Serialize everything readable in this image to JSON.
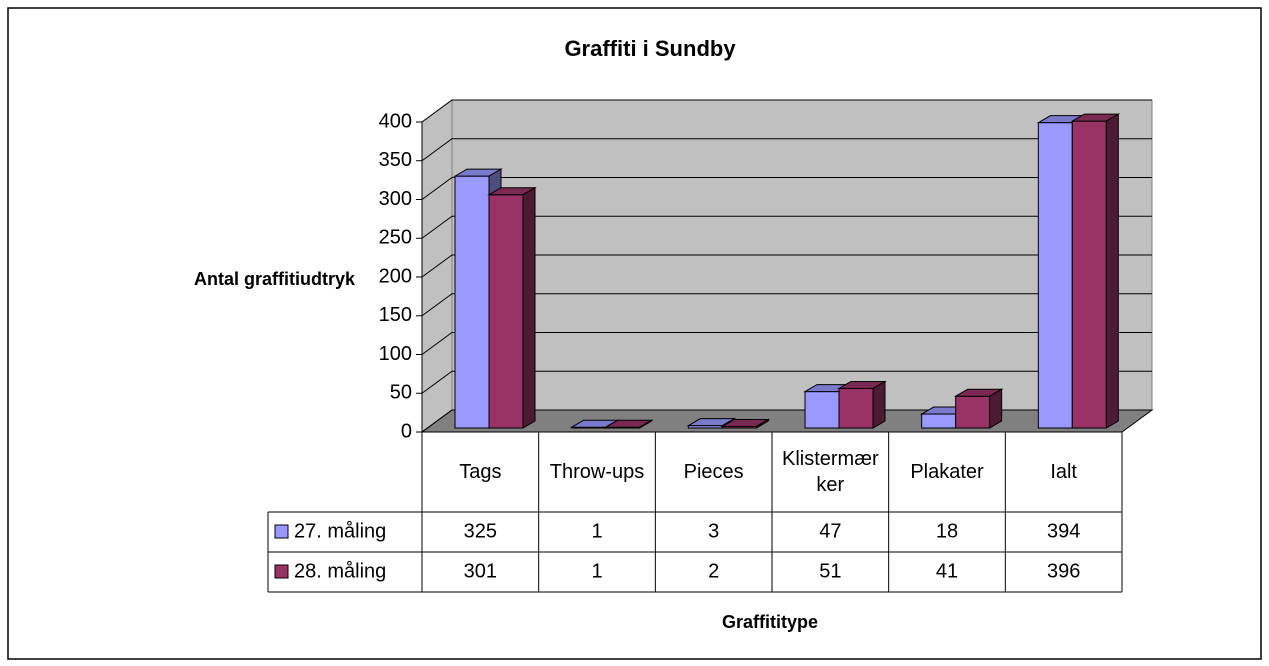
{
  "chart_data": {
    "type": "bar3d",
    "title": "Graffiti i Sundby",
    "y_label": "Antal graffitiudtryk",
    "x_label": "Graffititype",
    "categories": [
      "Tags",
      "Throw-ups",
      "Pieces",
      "Klistermærker",
      "Plakater",
      "Ialt"
    ],
    "series": [
      {
        "name": "27. måling",
        "color": "#9999ff",
        "values": [
          325,
          1,
          3,
          47,
          18,
          394
        ]
      },
      {
        "name": "28. måling",
        "color": "#993366",
        "values": [
          301,
          1,
          2,
          51,
          41,
          396
        ]
      }
    ],
    "ylim": [
      0,
      400
    ],
    "yticks": [
      0,
      50,
      100,
      150,
      200,
      250,
      300,
      350,
      400
    ],
    "grid": true,
    "data_table": true
  }
}
